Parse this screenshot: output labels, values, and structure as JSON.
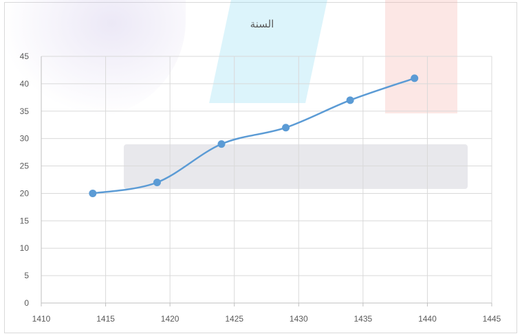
{
  "chart_data": {
    "type": "scatter",
    "title": "السنة",
    "xlabel": "",
    "ylabel": "",
    "xlim": [
      1410,
      1445
    ],
    "ylim": [
      0,
      45
    ],
    "x_ticks": [
      1410,
      1415,
      1420,
      1425,
      1430,
      1435,
      1440,
      1445
    ],
    "y_ticks": [
      0,
      5,
      10,
      15,
      20,
      25,
      30,
      35,
      40,
      45
    ],
    "grid": true,
    "line_style": "smooth",
    "marker": "circle",
    "series": [
      {
        "x": [
          1414,
          1419,
          1424,
          1429,
          1434,
          1439
        ],
        "values": [
          20,
          22,
          29,
          32,
          37,
          41
        ]
      }
    ],
    "colors": {
      "series": "#5b9bd5",
      "grid": "#d9d9d9",
      "axis": "#bfbfbf",
      "text": "#595959"
    }
  }
}
